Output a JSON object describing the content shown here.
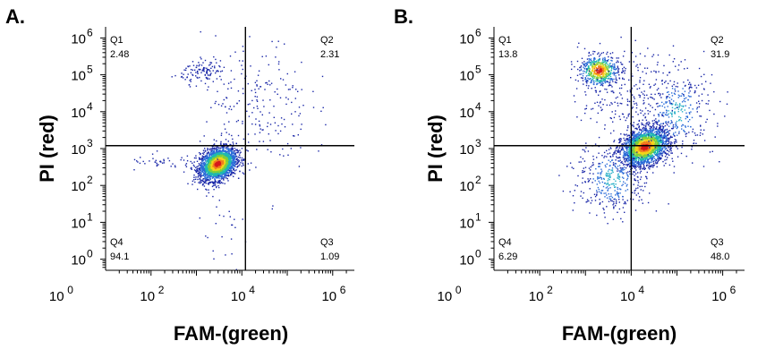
{
  "chart_data": [
    {
      "panel_label": "A.",
      "type": "scatter",
      "plot_style": "flow-cytometry density dot plot with quadrant gates",
      "xlabel": "FAM-(green)",
      "ylabel": "PI (red)",
      "x_scale": "log",
      "y_scale": "log",
      "xlim": [
        10,
        3000000
      ],
      "ylim": [
        0.5,
        2000000
      ],
      "x_ticks": [
        {
          "v": 1,
          "label": "10",
          "exp": "0"
        },
        {
          "v": 100,
          "label": "10",
          "exp": "2"
        },
        {
          "v": 10000,
          "label": "10",
          "exp": "4"
        },
        {
          "v": 1000000,
          "label": "10",
          "exp": "6"
        }
      ],
      "y_ticks": [
        {
          "v": 1,
          "label": "10",
          "exp": "0"
        },
        {
          "v": 10,
          "label": "10",
          "exp": "1"
        },
        {
          "v": 100,
          "label": "10",
          "exp": "2"
        },
        {
          "v": 1000,
          "label": "10",
          "exp": "3"
        },
        {
          "v": 10000,
          "label": "10",
          "exp": "4"
        },
        {
          "v": 100000,
          "label": "10",
          "exp": "5"
        },
        {
          "v": 1000000,
          "label": "10",
          "exp": "6"
        }
      ],
      "gate": {
        "x": 12000,
        "y": 1200
      },
      "quadrants": [
        {
          "name": "Q1",
          "value": "2.48",
          "corner": "top-left"
        },
        {
          "name": "Q2",
          "value": "2.31",
          "corner": "top-right"
        },
        {
          "name": "Q4",
          "value": "94.1",
          "corner": "bottom-left"
        },
        {
          "name": "Q3",
          "value": "1.09",
          "corner": "bottom-right"
        }
      ],
      "populations": [
        {
          "cx": 3000,
          "cy": 380,
          "sx": 0.2,
          "sy": 0.22,
          "rho": 0.3,
          "n": 2500,
          "density": "high"
        },
        {
          "cx": 20000,
          "cy": 15000,
          "sx": 0.6,
          "sy": 0.9,
          "rho": 0.0,
          "n": 220,
          "density": "low"
        },
        {
          "cx": 1500,
          "cy": 120000,
          "sx": 0.25,
          "sy": 0.15,
          "rho": 0.0,
          "n": 110,
          "density": "low"
        },
        {
          "cx": 200,
          "cy": 400,
          "sx": 0.4,
          "sy": 0.1,
          "rho": 0.0,
          "n": 40,
          "density": "low"
        },
        {
          "cx": 4000,
          "cy": 5,
          "sx": 0.3,
          "sy": 0.5,
          "rho": 0.0,
          "n": 25,
          "density": "low"
        }
      ]
    },
    {
      "panel_label": "B.",
      "type": "scatter",
      "plot_style": "flow-cytometry density dot plot with quadrant gates",
      "xlabel": "FAM-(green)",
      "ylabel": "PI (red)",
      "x_scale": "log",
      "y_scale": "log",
      "xlim": [
        10,
        3000000
      ],
      "ylim": [
        0.5,
        2000000
      ],
      "x_ticks": [
        {
          "v": 1,
          "label": "10",
          "exp": "0"
        },
        {
          "v": 100,
          "label": "10",
          "exp": "2"
        },
        {
          "v": 10000,
          "label": "10",
          "exp": "4"
        },
        {
          "v": 1000000,
          "label": "10",
          "exp": "6"
        }
      ],
      "y_ticks": [
        {
          "v": 1,
          "label": "10",
          "exp": "0"
        },
        {
          "v": 10,
          "label": "10",
          "exp": "1"
        },
        {
          "v": 100,
          "label": "10",
          "exp": "2"
        },
        {
          "v": 1000,
          "label": "10",
          "exp": "3"
        },
        {
          "v": 10000,
          "label": "10",
          "exp": "4"
        },
        {
          "v": 100000,
          "label": "10",
          "exp": "5"
        },
        {
          "v": 1000000,
          "label": "10",
          "exp": "6"
        }
      ],
      "gate": {
        "x": 10000,
        "y": 1200
      },
      "quadrants": [
        {
          "name": "Q1",
          "value": "13.8",
          "corner": "top-left"
        },
        {
          "name": "Q2",
          "value": "31.9",
          "corner": "top-right"
        },
        {
          "name": "Q4",
          "value": "6.29",
          "corner": "bottom-left"
        },
        {
          "name": "Q3",
          "value": "48.0",
          "corner": "bottom-right"
        }
      ],
      "populations": [
        {
          "cx": 20000,
          "cy": 1100,
          "sx": 0.25,
          "sy": 0.25,
          "rho": 0.3,
          "n": 2200,
          "density": "high"
        },
        {
          "cx": 2000,
          "cy": 130000,
          "sx": 0.2,
          "sy": 0.2,
          "rho": 0.0,
          "n": 600,
          "density": "high"
        },
        {
          "cx": 100000,
          "cy": 10000,
          "sx": 0.4,
          "sy": 0.6,
          "rho": 0.0,
          "n": 350,
          "density": "mid"
        },
        {
          "cx": 8000,
          "cy": 30000,
          "sx": 0.5,
          "sy": 0.6,
          "rho": 0.0,
          "n": 250,
          "density": "low"
        },
        {
          "cx": 4000,
          "cy": 150,
          "sx": 0.4,
          "sy": 0.5,
          "rho": 0.0,
          "n": 400,
          "density": "mid"
        }
      ]
    }
  ]
}
